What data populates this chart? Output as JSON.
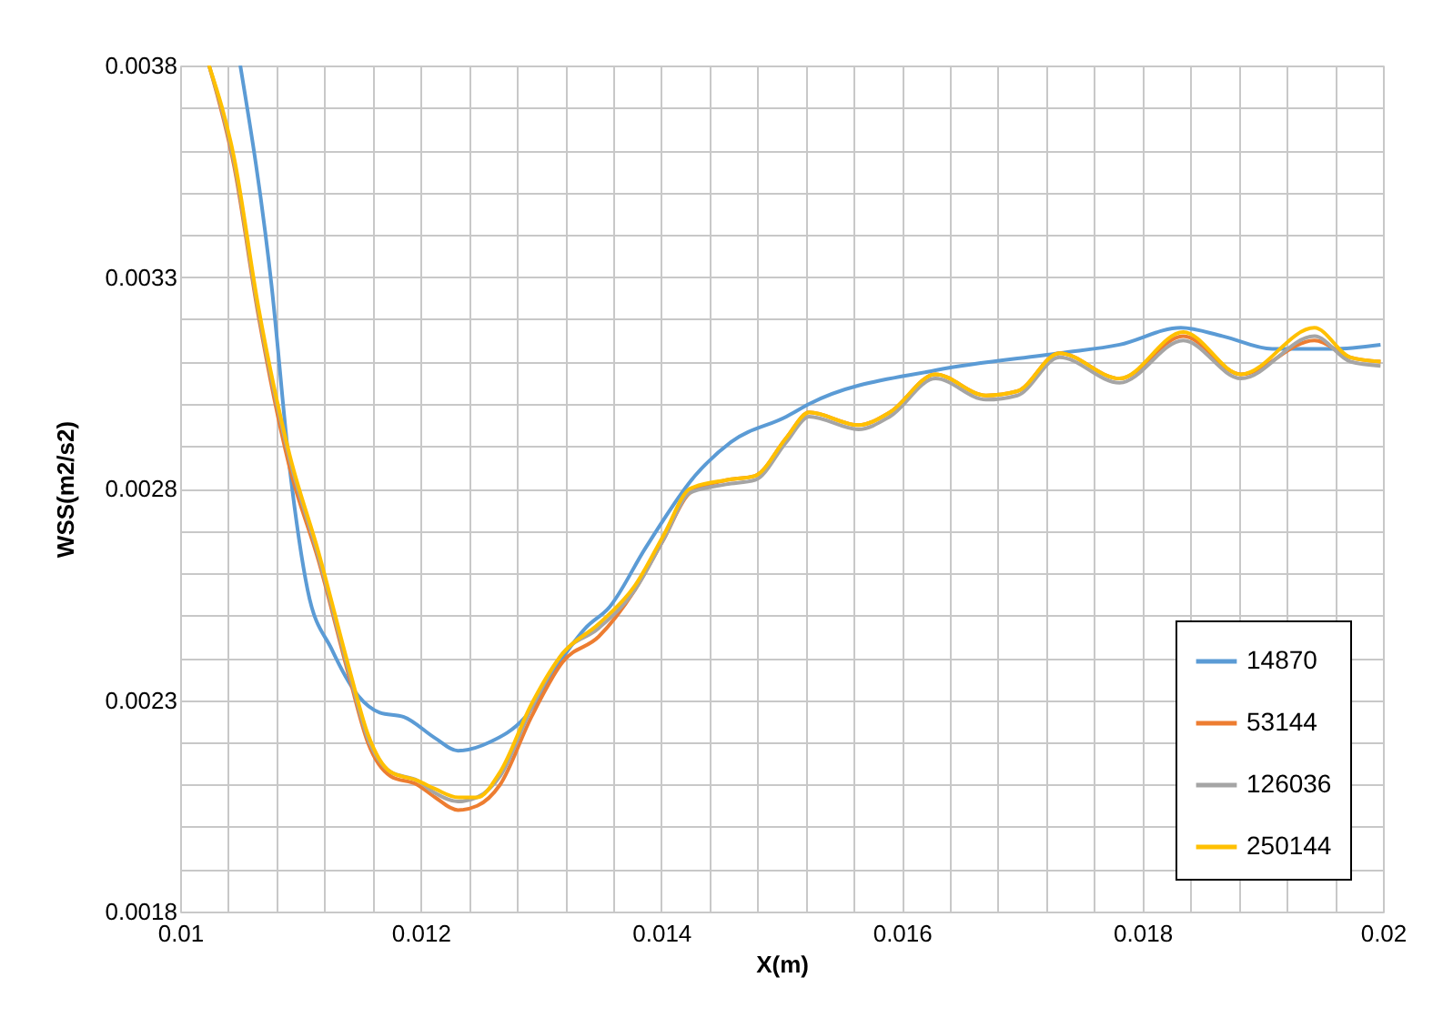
{
  "chart_data": {
    "type": "line",
    "xlabel": "X(m)",
    "ylabel": "WSS(m2/s2)",
    "xlim": [
      0.01,
      0.02
    ],
    "ylim": [
      0.0018,
      0.0038
    ],
    "xticks": [
      0.01,
      {
        "value": 0.0104,
        "label": null
      },
      {
        "value": 0.0108,
        "label": null
      },
      {
        "value": 0.0112,
        "label": null
      },
      {
        "value": 0.0116,
        "label": null
      },
      0.012,
      {
        "value": 0.0124,
        "label": null
      },
      {
        "value": 0.0128,
        "label": null
      },
      {
        "value": 0.0132,
        "label": null
      },
      {
        "value": 0.0136,
        "label": null
      },
      0.014,
      {
        "value": 0.0144,
        "label": null
      },
      {
        "value": 0.0148,
        "label": null
      },
      {
        "value": 0.0152,
        "label": null
      },
      {
        "value": 0.0156,
        "label": null
      },
      0.016,
      {
        "value": 0.0164,
        "label": null
      },
      {
        "value": 0.0168,
        "label": null
      },
      {
        "value": 0.0172,
        "label": null
      },
      {
        "value": 0.0176,
        "label": null
      },
      0.018,
      {
        "value": 0.0184,
        "label": null
      },
      {
        "value": 0.0188,
        "label": null
      },
      {
        "value": 0.0192,
        "label": null
      },
      {
        "value": 0.0196,
        "label": null
      },
      0.02
    ],
    "yticks": [
      0.0018,
      {
        "value": 0.0019,
        "label": null
      },
      {
        "value": 0.002,
        "label": null
      },
      {
        "value": 0.0021,
        "label": null
      },
      {
        "value": 0.0022,
        "label": null
      },
      0.0023,
      {
        "value": 0.0024,
        "label": null
      },
      {
        "value": 0.0025,
        "label": null
      },
      {
        "value": 0.0026,
        "label": null
      },
      {
        "value": 0.0027,
        "label": null
      },
      0.0028,
      {
        "value": 0.0029,
        "label": null
      },
      {
        "value": 0.003,
        "label": null
      },
      {
        "value": 0.0031,
        "label": null
      },
      {
        "value": 0.0032,
        "label": null
      },
      0.0033,
      {
        "value": 0.0034,
        "label": null
      },
      {
        "value": 0.0035,
        "label": null
      },
      {
        "value": 0.0036,
        "label": null
      },
      {
        "value": 0.0037,
        "label": null
      },
      0.0038
    ],
    "grid": true,
    "legend": "bottom right",
    "marker": "none",
    "line_style": "solid",
    "series": [
      {
        "name": "14870",
        "color": "#5b9bd5",
        "x": [
          0.0105,
          0.01076,
          0.01091,
          0.01106,
          0.01126,
          0.01148,
          0.01166,
          0.01186,
          0.01212,
          0.01231,
          0.01257,
          0.01287,
          0.01318,
          0.01337,
          0.01357,
          0.01387,
          0.01428,
          0.01458,
          0.01504,
          0.01523,
          0.01629,
          0.01731,
          0.01781,
          0.01832,
          0.01867,
          0.01908,
          0.01958,
          0.01998
        ],
        "values": [
          0.0038,
          0.00328,
          0.00285,
          0.00256,
          0.00242,
          0.00231,
          0.00227,
          0.00226,
          0.00221,
          0.00218,
          0.0022,
          0.00226,
          0.0024,
          0.00247,
          0.00252,
          0.00266,
          0.00283,
          0.00291,
          0.00297,
          0.003,
          0.00308,
          0.00312,
          0.00314,
          0.00318,
          0.00316,
          0.00313,
          0.00313,
          0.00314
        ]
      },
      {
        "name": "53144",
        "color": "#ed7d31",
        "x": [
          0.01024,
          0.01045,
          0.01065,
          0.01091,
          0.01115,
          0.01141,
          0.01156,
          0.01175,
          0.01197,
          0.01212,
          0.01231,
          0.01247,
          0.01266,
          0.01292,
          0.01318,
          0.01348,
          0.01378,
          0.01402,
          0.01424,
          0.01454,
          0.01478,
          0.01504,
          0.01523,
          0.01564,
          0.0159,
          0.01628,
          0.0167,
          0.01696,
          0.01731,
          0.01781,
          0.01834,
          0.01882,
          0.01943,
          0.01973,
          0.01998
        ],
        "values": [
          0.0038,
          0.00356,
          0.00321,
          0.00285,
          0.00263,
          0.00235,
          0.0022,
          0.00212,
          0.0021,
          0.00207,
          0.00204,
          0.00205,
          0.0021,
          0.00226,
          0.00239,
          0.00245,
          0.00256,
          0.00268,
          0.00279,
          0.00282,
          0.00283,
          0.00292,
          0.00298,
          0.00295,
          0.00298,
          0.00307,
          0.00302,
          0.00303,
          0.00312,
          0.00306,
          0.00316,
          0.00307,
          0.00315,
          0.00311,
          0.0031
        ]
      },
      {
        "name": "126036",
        "color": "#a5a5a5",
        "x": [
          0.01024,
          0.01045,
          0.01065,
          0.01091,
          0.01115,
          0.01141,
          0.01156,
          0.01175,
          0.01197,
          0.01212,
          0.01231,
          0.01247,
          0.01266,
          0.01292,
          0.01318,
          0.01348,
          0.01378,
          0.01402,
          0.01424,
          0.01454,
          0.01478,
          0.01504,
          0.01523,
          0.01564,
          0.0159,
          0.01628,
          0.0167,
          0.01696,
          0.01731,
          0.01781,
          0.01834,
          0.01882,
          0.01943,
          0.01973,
          0.01998
        ],
        "values": [
          0.0038,
          0.00357,
          0.00322,
          0.00287,
          0.00264,
          0.00236,
          0.00221,
          0.00213,
          0.00211,
          0.00208,
          0.00206,
          0.00207,
          0.00212,
          0.00228,
          0.00241,
          0.00247,
          0.00256,
          0.00268,
          0.00279,
          0.00281,
          0.00282,
          0.00291,
          0.00297,
          0.00294,
          0.00297,
          0.00306,
          0.00301,
          0.00302,
          0.00311,
          0.00305,
          0.00315,
          0.00306,
          0.00316,
          0.0031,
          0.00309
        ]
      },
      {
        "name": "250144",
        "color": "#ffc000",
        "x": [
          0.01024,
          0.01045,
          0.01065,
          0.01091,
          0.01115,
          0.01141,
          0.01156,
          0.01175,
          0.01197,
          0.01212,
          0.01231,
          0.01247,
          0.01266,
          0.01292,
          0.01318,
          0.01348,
          0.01378,
          0.01402,
          0.01424,
          0.01454,
          0.01478,
          0.01504,
          0.01523,
          0.01564,
          0.0159,
          0.01628,
          0.0167,
          0.01696,
          0.01731,
          0.01781,
          0.01834,
          0.01882,
          0.01943,
          0.01973,
          0.01998
        ],
        "values": [
          0.0038,
          0.00358,
          0.00323,
          0.00288,
          0.00265,
          0.00237,
          0.00222,
          0.00213,
          0.00211,
          0.00209,
          0.00207,
          0.00207,
          0.00213,
          0.00229,
          0.00241,
          0.00248,
          0.00257,
          0.00269,
          0.0028,
          0.00282,
          0.00283,
          0.00292,
          0.00298,
          0.00295,
          0.00298,
          0.00307,
          0.00302,
          0.00303,
          0.00312,
          0.00306,
          0.00317,
          0.00307,
          0.00318,
          0.00311,
          0.0031
        ]
      }
    ]
  }
}
